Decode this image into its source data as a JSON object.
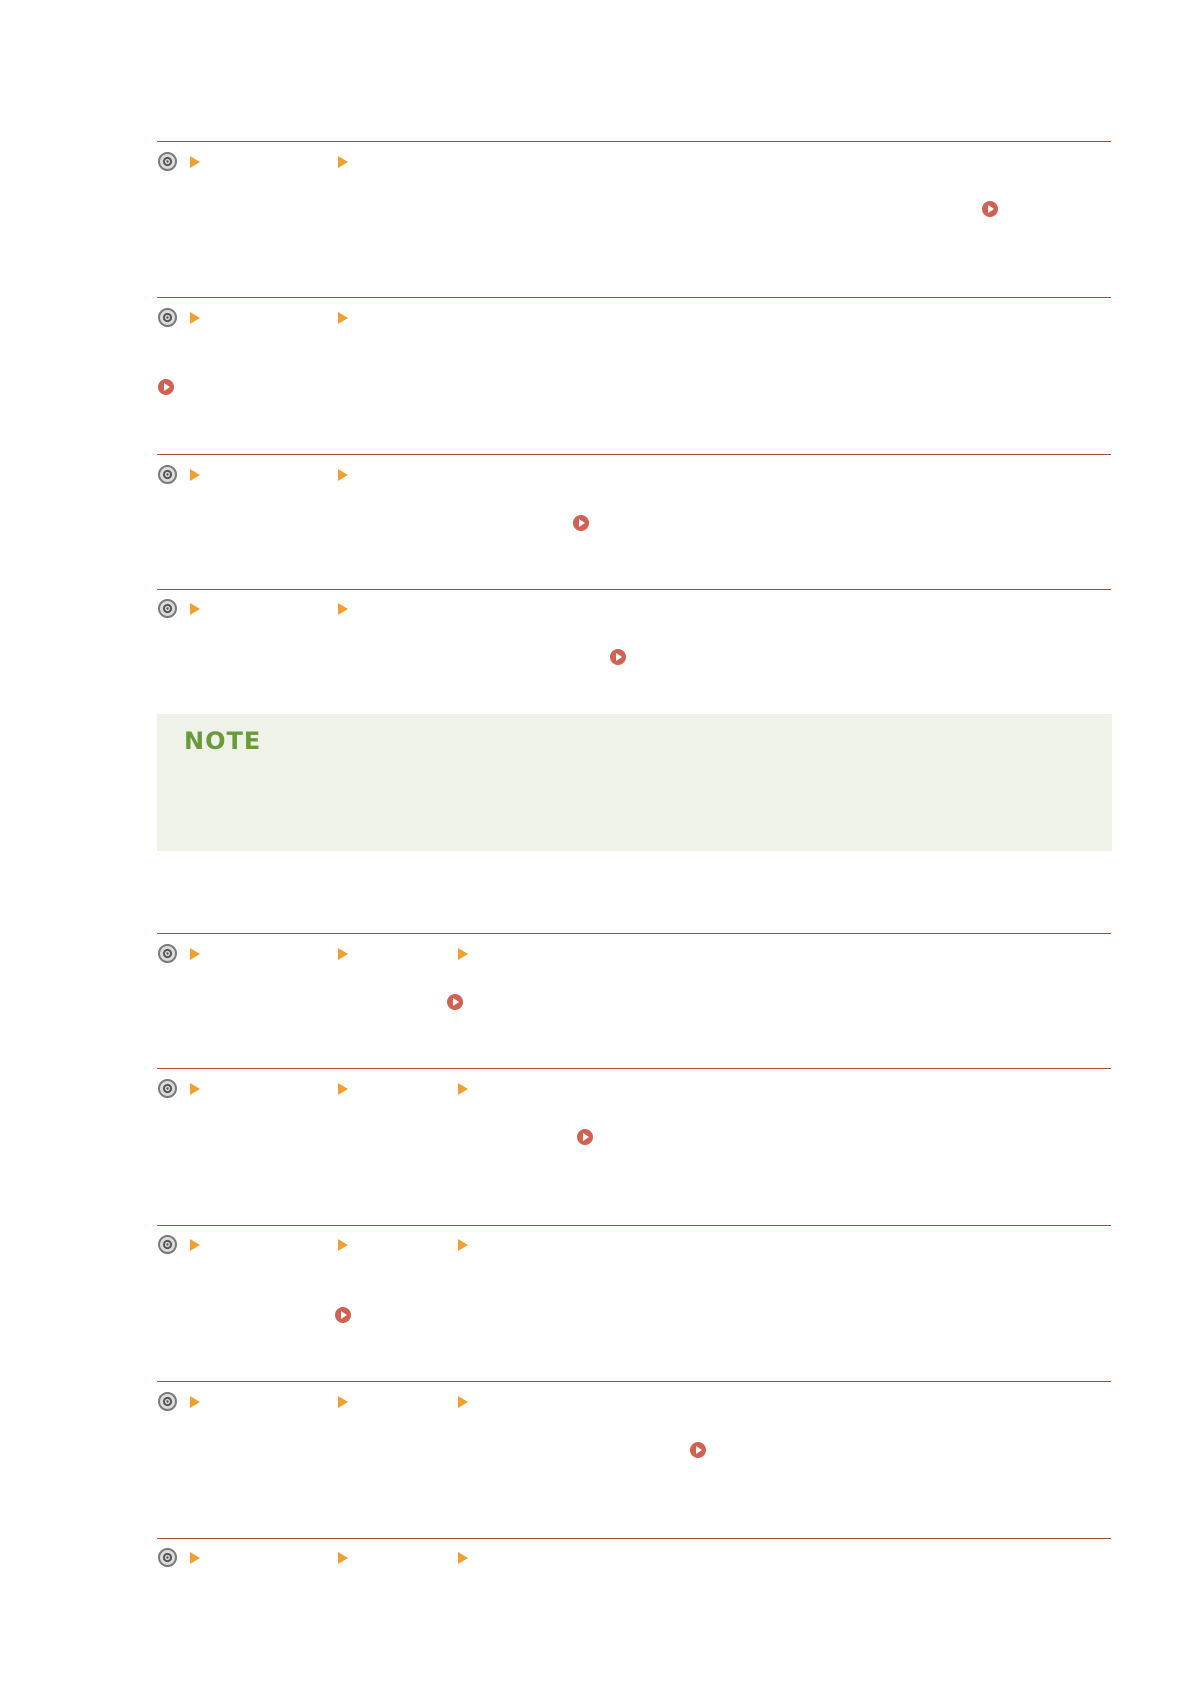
{
  "note": {
    "title": "NOTE"
  },
  "icons": {
    "settings": "settings-icon",
    "breadcrumb_arrow": "triangle-right-icon",
    "link": "circle-play-icon"
  },
  "colors": {
    "rule": "#b04a3c",
    "breadcrumb_arrow": "#f0a030",
    "link": "#cf6254",
    "note_background": "#eef2e8",
    "note_title": "#6b9a3a"
  }
}
